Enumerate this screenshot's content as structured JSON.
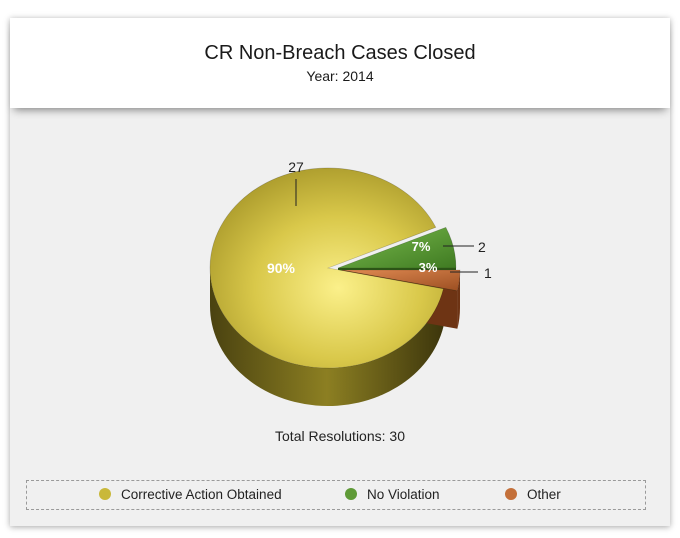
{
  "chart_data": {
    "type": "pie",
    "title": "CR Non-Breach Cases Closed",
    "subtitle": "Year: 2014",
    "total_label": "Total Resolutions: 30",
    "slices": [
      {
        "name": "Corrective Action Obtained",
        "value": 27,
        "percent_label": "90%",
        "color": "#c9b83a"
      },
      {
        "name": "No Violation",
        "value": 2,
        "percent_label": "7%",
        "color": "#5f9a37"
      },
      {
        "name": "Other",
        "value": 1,
        "percent_label": "3%",
        "color": "#c4703a"
      }
    ],
    "legend_position": "bottom"
  }
}
